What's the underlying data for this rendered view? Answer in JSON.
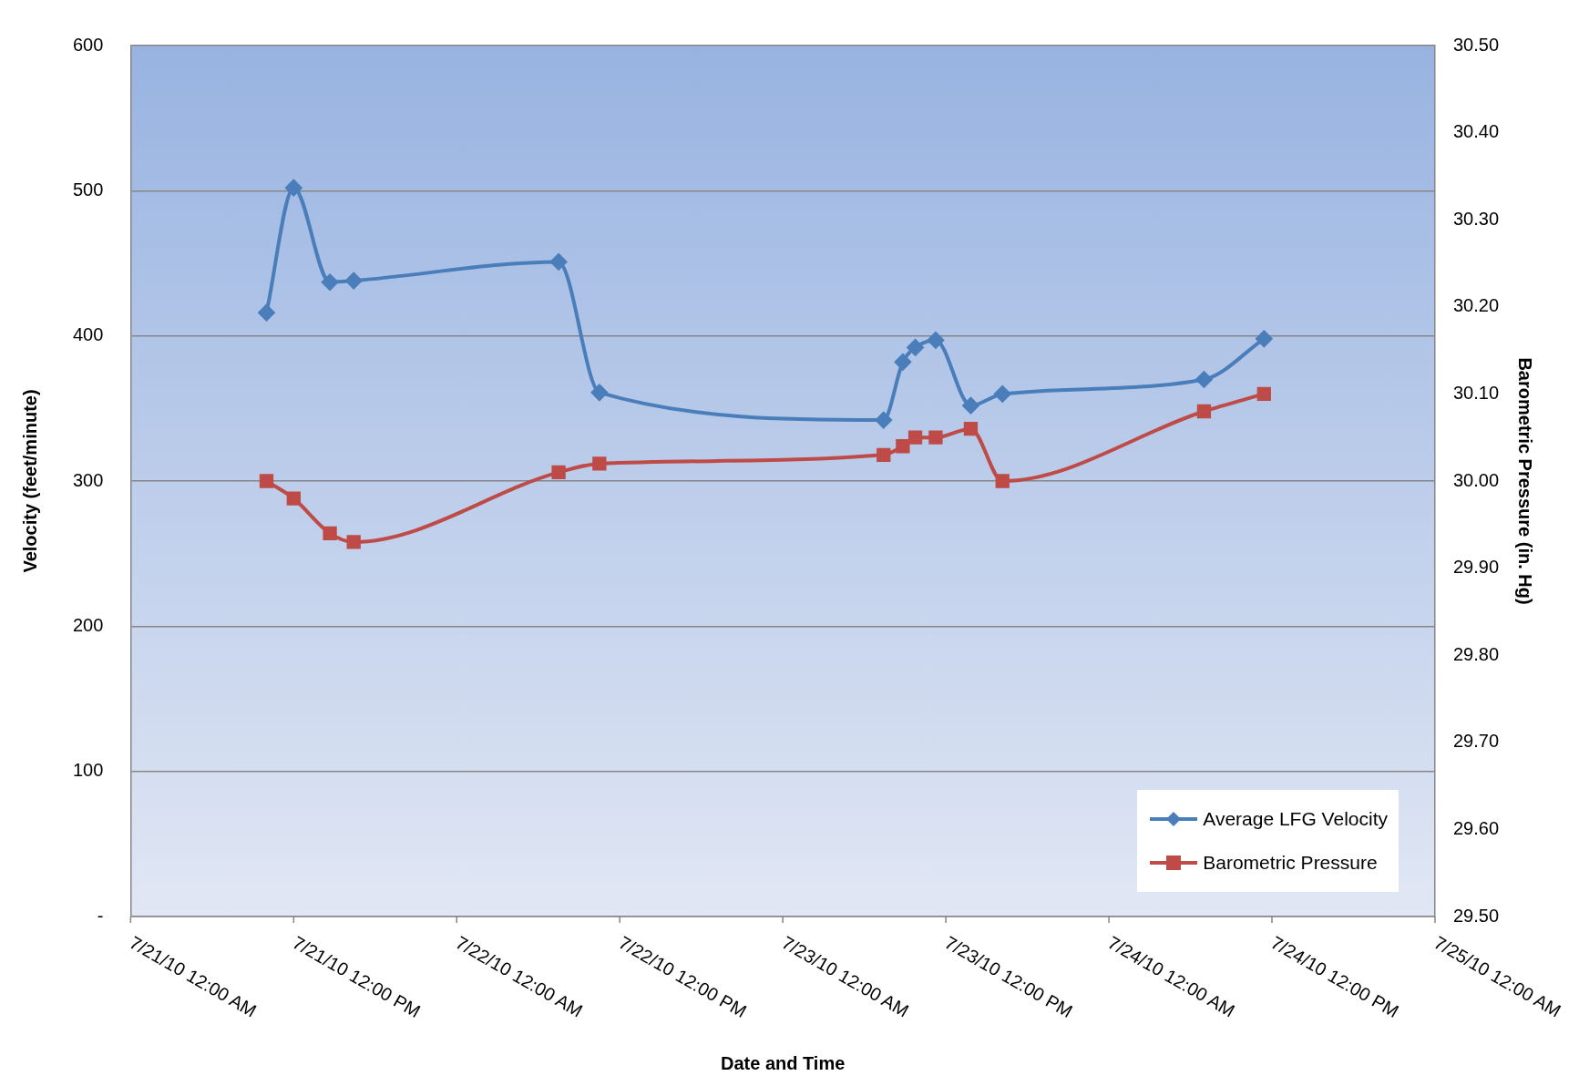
{
  "chart_data": {
    "type": "line",
    "xlabel": "Date and Time",
    "ylabel": "Velocity (feet/minute)",
    "y2label": "Barometric Pressure (in. Hg)",
    "x": [
      "--07-21T10:00",
      "--07-21T12:00",
      "--07-21T14:40",
      "--07-21T16:25",
      "--07-22T07:30",
      "--07-22T10:30",
      "--07-23T07:25",
      "--07-23T08:50",
      "--07-23T09:45",
      "--07-23T11:15",
      "--07-23T13:50",
      "--07-23T16:10",
      "--07-24T07:00",
      "--07-24T11:25"
    ],
    "series": [
      {
        "name": "Average LFG Velocity",
        "color": "#4a7ebb",
        "marker": "diamond",
        "values": [
          416,
          502,
          437,
          438,
          451,
          361,
          342,
          382,
          392,
          397,
          352,
          360,
          370,
          398
        ]
      },
      {
        "name": "Barometric Pressure",
        "color": "#be4b48",
        "marker": "square",
        "axis": "y2",
        "values": [
          30.0,
          29.98,
          29.94,
          29.93,
          30.01,
          30.02,
          30.03,
          30.04,
          30.05,
          30.05,
          30.06,
          30.0,
          30.08,
          30.1
        ]
      }
    ],
    "xlim": [
      "--07-21T00:00",
      "--07-25T00:00"
    ],
    "xticks": [
      {
        "value": "--07-21T00:00",
        "label": "7/21/10 12:00 AM"
      },
      {
        "value": "--07-21T12:00",
        "label": "7/21/10 12:00 PM"
      },
      {
        "value": "--07-22T00:00",
        "label": "7/22/10 12:00 AM"
      },
      {
        "value": "--07-22T12:00",
        "label": "7/22/10 12:00 PM"
      },
      {
        "value": "--07-23T00:00",
        "label": "7/23/10 12:00 AM"
      },
      {
        "value": "--07-23T12:00",
        "label": "7/23/10 12:00 PM"
      },
      {
        "value": "--07-24T00:00",
        "label": "7/24/10 12:00 AM"
      },
      {
        "value": "--07-24T12:00",
        "label": "7/24/10 12:00 PM"
      },
      {
        "value": "--07-25T00:00",
        "label": "7/25/10 12:00 AM"
      }
    ],
    "ylim": [
      0,
      600
    ],
    "yticks": [
      {
        "value": 0,
        "label": "-"
      },
      100,
      200,
      300,
      400,
      500,
      600
    ],
    "y2lim": [
      29.5,
      30.5
    ],
    "y2ticks": [
      {
        "value": 29.5,
        "label": "29.50"
      },
      {
        "value": 29.6,
        "label": "29.60"
      },
      {
        "value": 29.7,
        "label": "29.70"
      },
      {
        "value": 29.8,
        "label": "29.80"
      },
      {
        "value": 29.9,
        "label": "29.90"
      },
      {
        "value": 30.0,
        "label": "30.00"
      },
      {
        "value": 30.1,
        "label": "30.10"
      },
      {
        "value": 30.2,
        "label": "30.20"
      },
      {
        "value": 30.3,
        "label": "30.30"
      },
      {
        "value": 30.4,
        "label": "30.40"
      },
      {
        "value": 30.5,
        "label": "30.50"
      }
    ],
    "grid": "y",
    "legend": "bottom right",
    "line_style": "solid"
  }
}
